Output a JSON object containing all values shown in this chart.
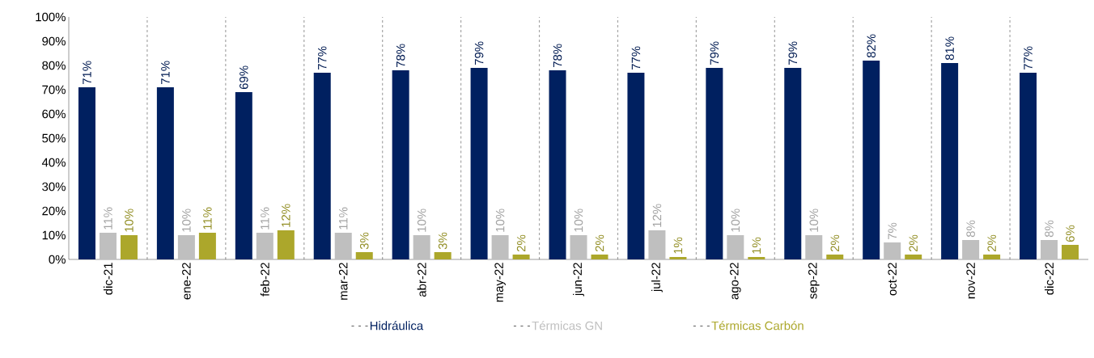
{
  "chart_data": {
    "type": "bar",
    "categories": [
      "dic-21",
      "ene-22",
      "feb-22",
      "mar-22",
      "abr-22",
      "may-22",
      "jun-22",
      "jul-22",
      "ago-22",
      "sep-22",
      "oct-22",
      "nov-22",
      "dic-22"
    ],
    "series": [
      {
        "name": "Hidráulica",
        "color": "#002060",
        "values": [
          71,
          71,
          69,
          77,
          78,
          79,
          78,
          77,
          79,
          79,
          82,
          81,
          77
        ],
        "value_labels": [
          "71%",
          "71%",
          "69%",
          "77%",
          "78%",
          "79%",
          "78%",
          "77%",
          "79%",
          "79%",
          "82%",
          "81%",
          "77%"
        ]
      },
      {
        "name": "Térmicas GN",
        "color": "#bfbfbf",
        "values": [
          11,
          10,
          11,
          11,
          10,
          10,
          10,
          12,
          10,
          10,
          7,
          8,
          8
        ],
        "value_labels": [
          "11%",
          "10%",
          "11%",
          "11%",
          "10%",
          "10%",
          "10%",
          "12%",
          "10%",
          "10%",
          "7%",
          "8%",
          "8%"
        ]
      },
      {
        "name": "Térmicas Carbón",
        "color": "#aca72b",
        "values": [
          10,
          11,
          12,
          3,
          3,
          2,
          2,
          1,
          1,
          2,
          2,
          2,
          6
        ],
        "value_labels": [
          "10%",
          "11%",
          "12%",
          "3%",
          "3%",
          "2%",
          "2%",
          "1%",
          "1%",
          "2%",
          "2%",
          "2%",
          "6%"
        ]
      }
    ],
    "ylim": [
      0,
      100
    ],
    "yticks": [
      {
        "value": 0,
        "label": "0%"
      },
      {
        "value": 10,
        "label": "10%"
      },
      {
        "value": 20,
        "label": "20%"
      },
      {
        "value": 30,
        "label": "30%"
      },
      {
        "value": 40,
        "label": "40%"
      },
      {
        "value": 50,
        "label": "50%"
      },
      {
        "value": 60,
        "label": "60%"
      },
      {
        "value": 70,
        "label": "70%"
      },
      {
        "value": 80,
        "label": "80%"
      },
      {
        "value": 90,
        "label": "90%"
      },
      {
        "value": 100,
        "label": "100%"
      }
    ],
    "grid": "x",
    "legend": "bottom"
  }
}
